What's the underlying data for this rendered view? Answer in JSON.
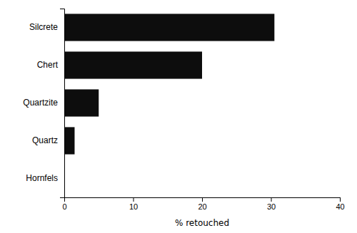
{
  "chart_data": {
    "type": "bar",
    "orientation": "horizontal",
    "categories": [
      "Silcrete",
      "Chert",
      "Quartzite",
      "Quartz",
      "Hornfels"
    ],
    "values": [
      30.5,
      20.0,
      5.0,
      1.5,
      0.0
    ],
    "color": "#0d0d0d",
    "xlabel": "% retouched",
    "xlim": [
      0,
      40
    ],
    "xticks": [
      0,
      10,
      20,
      30,
      40
    ],
    "grid": false
  }
}
